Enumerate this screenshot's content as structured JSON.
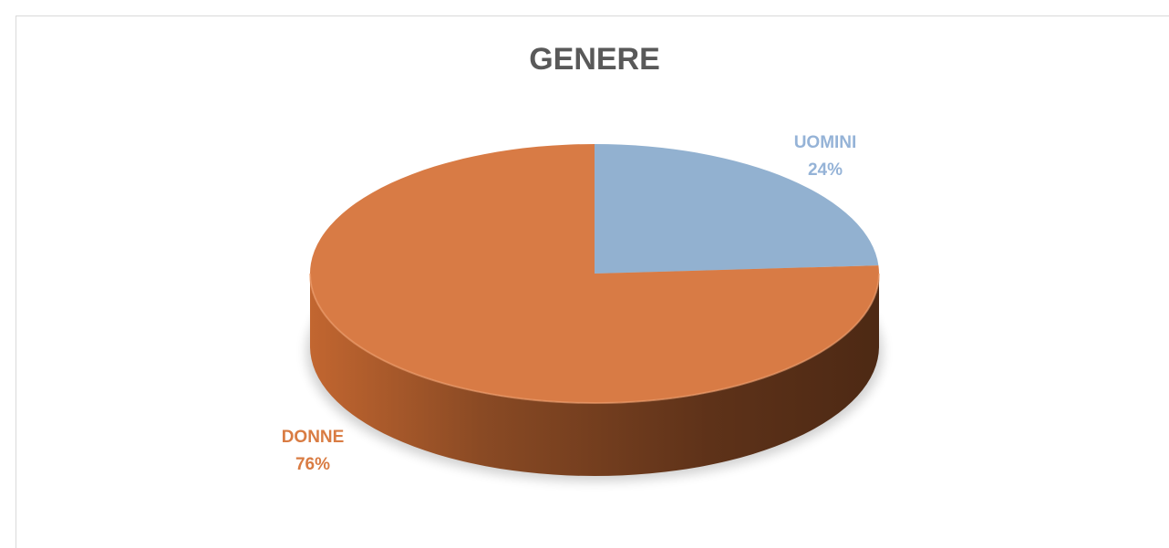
{
  "chart_data": {
    "type": "pie",
    "title": "GENERE",
    "categories": [
      "UOMINI",
      "DONNE"
    ],
    "values": [
      24,
      76
    ],
    "value_labels": [
      "24%",
      "76%"
    ],
    "colors": [
      "#92b1d0",
      "#d87b45"
    ],
    "label_colors": [
      "#95b3d7",
      "#d97c43"
    ]
  }
}
